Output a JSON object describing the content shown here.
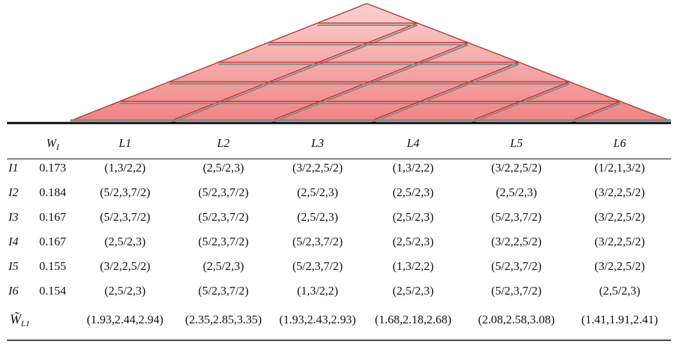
{
  "table": {
    "columns": [
      {
        "symbol": "W",
        "subscript": "I"
      },
      "L1",
      "L2",
      "L3",
      "L4",
      "L5",
      "L6"
    ],
    "rows": [
      {
        "label": "I1",
        "weight": 0.173,
        "cells": [
          "(1,3/2,2)",
          "(2,5/2,3)",
          "(3/2,2,5/2)",
          "(1,3/2,2)",
          "(3/2,2,5/2)",
          "(1/2,1,3/2)"
        ]
      },
      {
        "label": "I2",
        "weight": 0.184,
        "cells": [
          "(5/2,3,7/2)",
          "(5/2,3,7/2)",
          "(2,5/2,3)",
          "(2,5/2,3)",
          "(2,5/2,3)",
          "(3/2,2,5/2)"
        ]
      },
      {
        "label": "I3",
        "weight": 0.167,
        "cells": [
          "(5/2,3,7/2)",
          "(5/2,3,7/2)",
          "(2,5/2,3)",
          "(2,5/2,3)",
          "(5/2,3,7/2)",
          "(3/2,2,5/2)"
        ]
      },
      {
        "label": "I4",
        "weight": 0.167,
        "cells": [
          "(2,5/2,3)",
          "(5/2,3,7/2)",
          "(5/2,3,7/2)",
          "(2,5/2,3)",
          "(3/2,2,5/2)",
          "(3/2,2,5/2)"
        ]
      },
      {
        "label": "I5",
        "weight": 0.155,
        "cells": [
          "(3/2,2,5/2)",
          "(2,5/2,3)",
          "(5/2,3,7/2)",
          "(1,3/2,2)",
          "(5/2,3,7/2)",
          "(3/2,2,5/2)"
        ]
      },
      {
        "label": "I6",
        "weight": 0.154,
        "cells": [
          "(2,5/2,3)",
          "(5/2,3,7/2)",
          "(1,3/2,2)",
          "(2,5/2,3)",
          "(5/2,3,7/2)",
          "(2,5/2,3)"
        ]
      }
    ],
    "total": {
      "symbol": "W̃",
      "subscript": "L1",
      "cells": [
        "(1.93,2.44,2.94)",
        "(2.35,2.85,3.35)",
        "(1.93,2.43,2.93)",
        "(1.68,2.18,2.68)",
        "(2.08,2.58,3.08)",
        "(1.41,1.91,2.41)"
      ]
    }
  }
}
